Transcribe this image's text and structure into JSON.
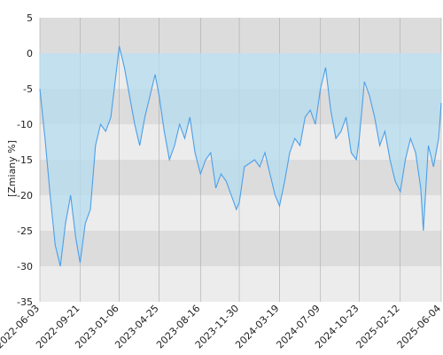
{
  "chart_data": {
    "type": "area",
    "title": "",
    "xlabel": "",
    "ylabel": "[Zmiany %]",
    "ylim": [
      -35,
      5
    ],
    "yticks": [
      5,
      0,
      -5,
      -10,
      -15,
      -20,
      -25,
      -30,
      -35
    ],
    "xticks": [
      "2022-06-03",
      "2022-09-21",
      "2023-01-06",
      "2023-04-25",
      "2023-08-16",
      "2023-11-30",
      "2024-03-19",
      "2024-07-09",
      "2024-10-23",
      "2025-02-12",
      "2025-06-04"
    ],
    "grid": true,
    "legend": "none",
    "colors": {
      "line": "#4c9fe8",
      "fill": "#b5dcf0",
      "band_dark": "#dcdcdc",
      "band_light": "#ececec",
      "gridline": "#aaaaaa"
    },
    "series": [
      {
        "x": [
          "2022-06-03",
          "2022-06-17",
          "2022-07-01",
          "2022-07-15",
          "2022-07-29",
          "2022-08-12",
          "2022-08-26",
          "2022-09-09",
          "2022-09-21",
          "2022-10-05",
          "2022-10-19",
          "2022-11-02",
          "2022-11-16",
          "2022-11-30",
          "2022-12-14",
          "2022-12-28",
          "2023-01-06",
          "2023-01-20",
          "2023-02-03",
          "2023-02-17",
          "2023-03-03",
          "2023-03-17",
          "2023-03-31",
          "2023-04-14",
          "2023-04-25",
          "2023-05-09",
          "2023-05-23",
          "2023-06-06",
          "2023-06-20",
          "2023-07-04",
          "2023-07-18",
          "2023-08-01",
          "2023-08-16",
          "2023-08-30",
          "2023-09-13",
          "2023-09-27",
          "2023-10-11",
          "2023-10-25",
          "2023-11-08",
          "2023-11-22",
          "2023-11-30",
          "2023-12-14",
          "2023-12-28",
          "2024-01-11",
          "2024-01-25",
          "2024-02-08",
          "2024-02-22",
          "2024-03-07",
          "2024-03-19",
          "2024-04-02",
          "2024-04-16",
          "2024-04-30",
          "2024-05-14",
          "2024-05-28",
          "2024-06-11",
          "2024-06-25",
          "2024-07-09",
          "2024-07-23",
          "2024-08-06",
          "2024-08-20",
          "2024-09-03",
          "2024-09-17",
          "2024-10-01",
          "2024-10-15",
          "2024-10-23",
          "2024-11-06",
          "2024-11-20",
          "2024-12-04",
          "2024-12-18",
          "2025-01-01",
          "2025-01-15",
          "2025-01-29",
          "2025-02-12",
          "2025-02-26",
          "2025-03-12",
          "2025-03-26",
          "2025-04-09",
          "2025-04-16",
          "2025-04-30",
          "2025-05-14",
          "2025-05-28",
          "2025-06-04"
        ],
        "values": [
          -5,
          -12,
          -20,
          -27,
          -30,
          -24,
          -20,
          -26,
          -29.5,
          -24,
          -22,
          -13,
          -10,
          -11,
          -9,
          -3,
          1,
          -2,
          -6,
          -10,
          -13,
          -9,
          -6,
          -3,
          -6,
          -11,
          -15,
          -13,
          -10,
          -12,
          -9,
          -14,
          -17,
          -15,
          -14,
          -19,
          -17,
          -18,
          -20,
          -22,
          -21,
          -16,
          -15.5,
          -15,
          -16,
          -14,
          -17,
          -20,
          -21.5,
          -18,
          -14,
          -12,
          -13,
          -9,
          -8,
          -10,
          -5,
          -2,
          -8,
          -12,
          -11,
          -9,
          -14,
          -15,
          -12,
          -4,
          -6,
          -9,
          -13,
          -11,
          -15,
          -18,
          -19.5,
          -15,
          -12,
          -14,
          -19,
          -25,
          -13,
          -16,
          -12,
          -7
        ]
      }
    ]
  }
}
